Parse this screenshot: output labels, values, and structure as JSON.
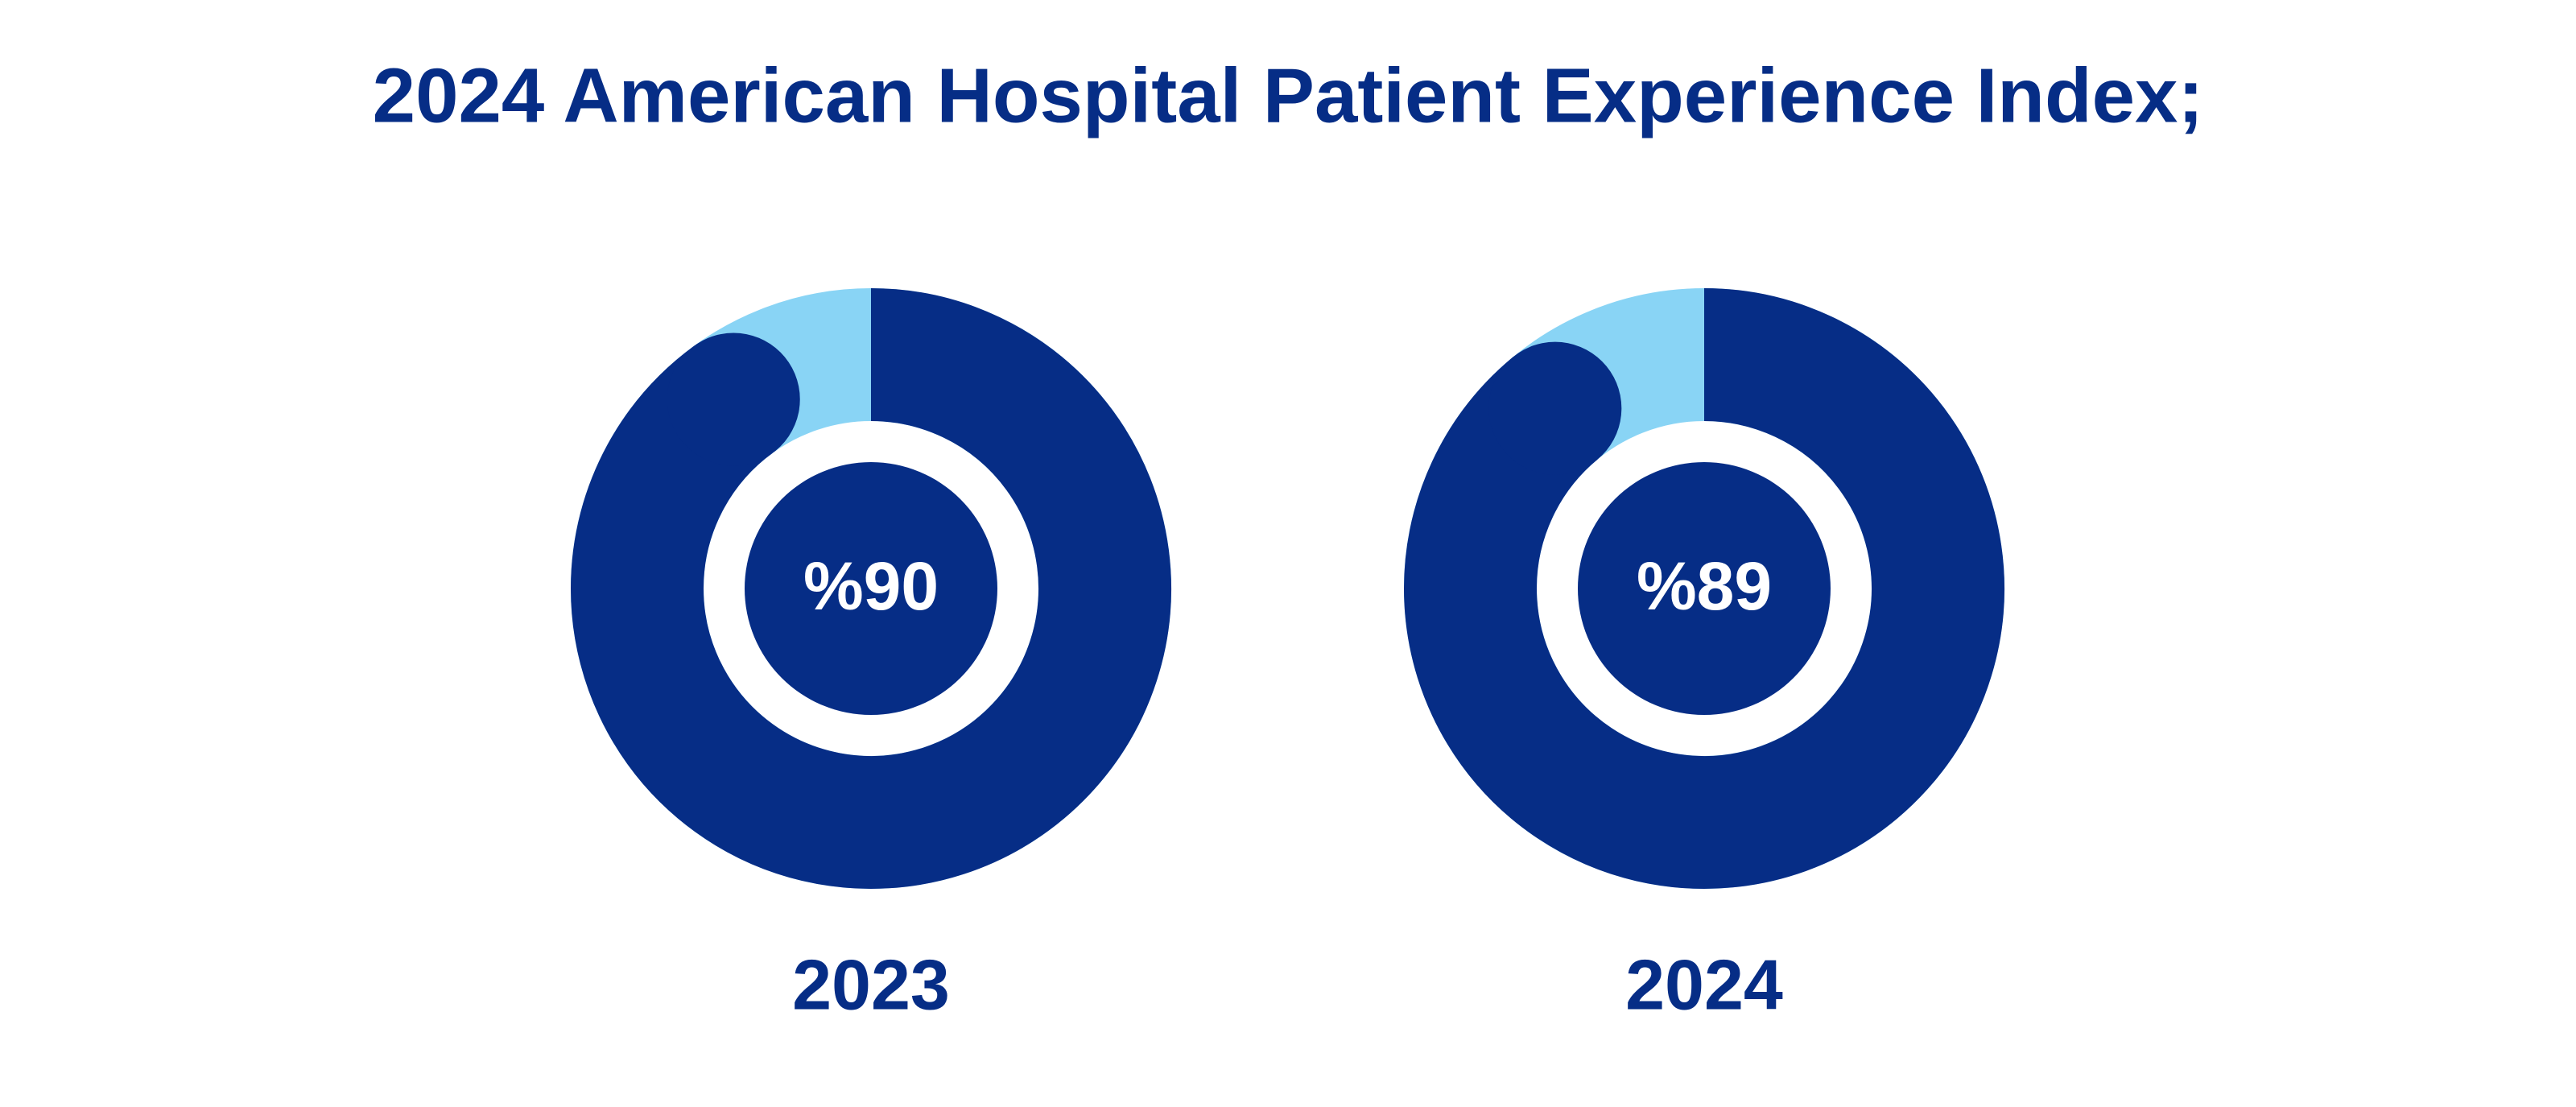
{
  "title": "2024 American Hospital Patient Experience Index;",
  "chart_data": [
    {
      "type": "donut",
      "label": "2023",
      "values": [
        90
      ],
      "value_labels": [
        "%90"
      ],
      "ylim": [
        0,
        100
      ],
      "color": "#062d86",
      "track_color": "#89d4f5"
    },
    {
      "type": "donut",
      "label": "2024",
      "values": [
        89
      ],
      "value_labels": [
        "%89"
      ],
      "ylim": [
        0,
        100
      ],
      "color": "#062d86",
      "track_color": "#89d4f5"
    }
  ]
}
